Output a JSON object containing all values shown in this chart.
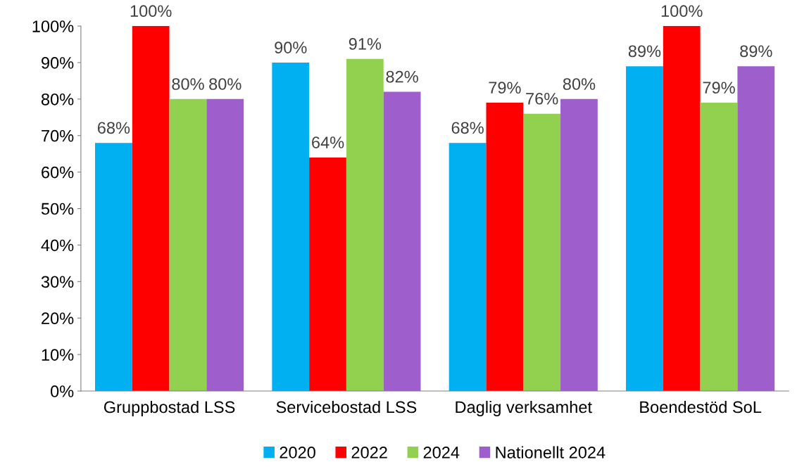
{
  "chart_data": {
    "type": "bar",
    "categories": [
      "Gruppbostad LSS",
      "Servicebostad LSS",
      "Daglig verksamhet",
      "Boendestöd SoL"
    ],
    "series": [
      {
        "name": "2020",
        "color": "#00b0f0",
        "values": [
          68,
          90,
          68,
          89
        ],
        "value_labels": [
          "68%",
          "90%",
          "68%",
          "89%"
        ]
      },
      {
        "name": "2022",
        "color": "#ff0000",
        "values": [
          100,
          64,
          79,
          100
        ],
        "value_labels": [
          "100%",
          "64%",
          "79%",
          "100%"
        ]
      },
      {
        "name": "2024",
        "color": "#92d050",
        "values": [
          80,
          91,
          76,
          79
        ],
        "value_labels": [
          "80%",
          "91%",
          "76%",
          "79%"
        ]
      },
      {
        "name": "Nationellt 2024",
        "color": "#9e5fcc",
        "values": [
          80,
          82,
          80,
          89
        ],
        "value_labels": [
          "80%",
          "82%",
          "80%",
          "89%"
        ]
      }
    ],
    "ylim": [
      0,
      100
    ],
    "yticks": [
      {
        "value": 0,
        "label": "0%"
      },
      {
        "value": 10,
        "label": "10%"
      },
      {
        "value": 20,
        "label": "20%"
      },
      {
        "value": 30,
        "label": "30%"
      },
      {
        "value": 40,
        "label": "40%"
      },
      {
        "value": 50,
        "label": "50%"
      },
      {
        "value": 60,
        "label": "60%"
      },
      {
        "value": 70,
        "label": "70%"
      },
      {
        "value": 80,
        "label": "80%"
      },
      {
        "value": 90,
        "label": "90%"
      },
      {
        "value": 100,
        "label": "100%"
      }
    ],
    "grid": false,
    "legend": "bottom"
  }
}
